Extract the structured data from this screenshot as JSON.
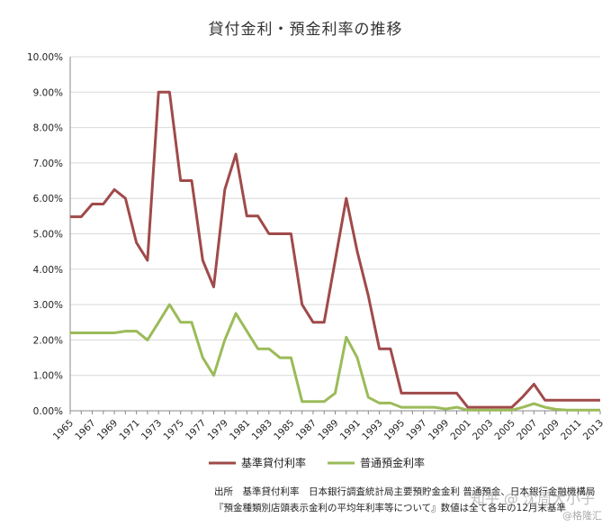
{
  "chart_data": {
    "type": "line",
    "title": "貸付金利・預金利率の推移",
    "xlabel": "",
    "ylabel": "",
    "ylim": [
      0,
      10
    ],
    "y_ticks": [
      "0.00%",
      "1.00%",
      "2.00%",
      "3.00%",
      "4.00%",
      "5.00%",
      "6.00%",
      "7.00%",
      "8.00%",
      "9.00%",
      "10.00%"
    ],
    "x_ticks": [
      "1965",
      "1967",
      "1969",
      "1971",
      "1973",
      "1975",
      "1977",
      "1979",
      "1981",
      "1983",
      "1985",
      "1987",
      "1989",
      "1991",
      "1993",
      "1995",
      "1997",
      "1999",
      "2001",
      "2003",
      "2005",
      "2007",
      "2009",
      "2011",
      "2013"
    ],
    "x": [
      1965,
      1966,
      1967,
      1968,
      1969,
      1970,
      1971,
      1972,
      1973,
      1974,
      1975,
      1976,
      1977,
      1978,
      1979,
      1980,
      1981,
      1982,
      1983,
      1984,
      1985,
      1986,
      1987,
      1988,
      1989,
      1990,
      1991,
      1992,
      1993,
      1994,
      1995,
      1996,
      1997,
      1998,
      1999,
      2000,
      2001,
      2002,
      2003,
      2004,
      2005,
      2006,
      2007,
      2008,
      2009,
      2010,
      2011,
      2012,
      2013
    ],
    "series": [
      {
        "name": "基準貸付利率",
        "color": "#a04a4a",
        "values": [
          5.48,
          5.48,
          5.84,
          5.84,
          6.25,
          6.0,
          4.75,
          4.25,
          9.0,
          9.0,
          6.5,
          6.5,
          4.25,
          3.5,
          6.25,
          7.25,
          5.5,
          5.5,
          5.0,
          5.0,
          5.0,
          3.0,
          2.5,
          2.5,
          4.25,
          6.0,
          4.5,
          3.25,
          1.75,
          1.75,
          0.5,
          0.5,
          0.5,
          0.5,
          0.5,
          0.5,
          0.1,
          0.1,
          0.1,
          0.1,
          0.1,
          0.4,
          0.75,
          0.3,
          0.3,
          0.3,
          0.3,
          0.3,
          0.3
        ]
      },
      {
        "name": "普通預金利率",
        "color": "#9bbb59",
        "values": [
          2.2,
          2.2,
          2.2,
          2.2,
          2.2,
          2.25,
          2.25,
          2.0,
          2.5,
          3.0,
          2.5,
          2.5,
          1.5,
          1.0,
          2.0,
          2.75,
          2.25,
          1.75,
          1.75,
          1.5,
          1.5,
          0.26,
          0.26,
          0.26,
          0.5,
          2.08,
          1.5,
          0.38,
          0.22,
          0.22,
          0.1,
          0.1,
          0.1,
          0.1,
          0.05,
          0.1,
          0.02,
          0.02,
          0.02,
          0.02,
          0.02,
          0.1,
          0.2,
          0.1,
          0.04,
          0.02,
          0.02,
          0.02,
          0.02
        ]
      }
    ],
    "grid": "horizontal",
    "legend": "bottom"
  },
  "source": {
    "line1": "出所　基準貸付利率　日本銀行調査統計局主要預貯金金利 普通預金、日本銀行金融機構局",
    "line2": "『預金種類別店頭表示金利の平均年利率等について』数値は全て各年の12月末基準"
  },
  "watermark": {
    "line1": "知乎 @ 沈周大小子",
    "line2": "@格隆汇"
  }
}
